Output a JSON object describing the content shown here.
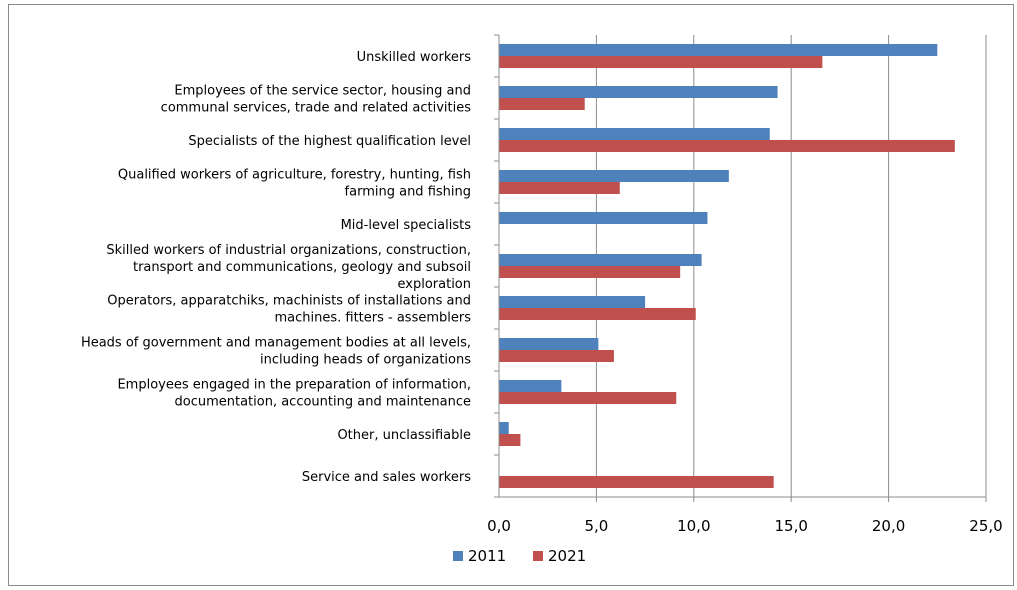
{
  "chart_data": {
    "type": "bar",
    "orientation": "horizontal",
    "categories": [
      [
        "Unskilled workers"
      ],
      [
        "Employees of the service sector, housing and",
        "communal services, trade and related activities"
      ],
      [
        "Specialists of the highest qualification level"
      ],
      [
        "Qualified workers of agriculture, forestry, hunting, fish",
        "farming and fishing"
      ],
      [
        "Mid-level specialists"
      ],
      [
        "Skilled workers of industrial organizations, construction,",
        "transport and communications, geology and subsoil",
        "exploration"
      ],
      [
        "Operators, apparatchiks, machinists of installations and",
        "machines. fitters - assemblers"
      ],
      [
        "Heads of government and management bodies at all levels,",
        "including heads of organizations"
      ],
      [
        "Employees engaged in the preparation of information,",
        "documentation, accounting and maintenance"
      ],
      [
        "Other, unclassifiable"
      ],
      [
        "Service and sales workers"
      ]
    ],
    "series": [
      {
        "name": "2011",
        "color": "#4f81bd",
        "values": [
          22.5,
          14.3,
          13.9,
          11.8,
          10.7,
          10.4,
          7.5,
          5.1,
          3.2,
          0.5,
          null
        ]
      },
      {
        "name": "2021",
        "color": "#c0504d",
        "values": [
          16.6,
          4.4,
          23.4,
          6.2,
          null,
          9.3,
          10.1,
          5.9,
          9.1,
          1.1,
          14.1
        ]
      }
    ],
    "x_ticks": [
      "0,0",
      "5,0",
      "10,0",
      "15,0",
      "20,0",
      "25,0"
    ],
    "xlim": [
      0,
      25
    ],
    "grid": "vertical",
    "legend": "bottom",
    "title": "",
    "xlabel": "",
    "ylabel": ""
  },
  "colors": {
    "gridline": "#8c8c8c",
    "axis": "#8c8c8c"
  }
}
